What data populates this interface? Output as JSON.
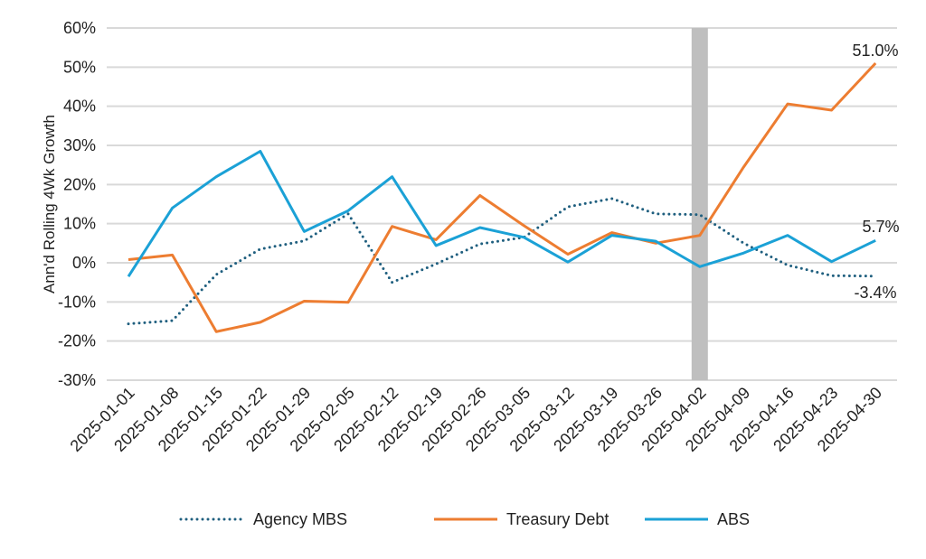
{
  "chart_data": {
    "type": "line",
    "title": "",
    "xlabel": "",
    "ylabel": "Ann'd Rolling 4Wk Growth",
    "ylim": [
      -30,
      60
    ],
    "yticks": [
      60,
      50,
      40,
      30,
      20,
      10,
      0,
      -10,
      -20,
      -30
    ],
    "ytick_labels": [
      "60%",
      "50%",
      "40%",
      "30%",
      "20%",
      "10%",
      "0%",
      "-10%",
      "-20%",
      "-30%"
    ],
    "grid": true,
    "legend_position": "bottom",
    "categories": [
      "2025-01-01",
      "2025-01-08",
      "2025-01-15",
      "2025-01-22",
      "2025-01-29",
      "2025-02-05",
      "2025-02-12",
      "2025-02-19",
      "2025-02-26",
      "2025-03-05",
      "2025-03-12",
      "2025-03-19",
      "2025-03-26",
      "2025-04-02",
      "2025-04-09",
      "2025-04-16",
      "2025-04-23",
      "2025-04-30"
    ],
    "highlight_category": "2025-04-02",
    "highlight_color": "#bfbfbf",
    "series": [
      {
        "name": "Agency MBS",
        "color": "#1f5f7f",
        "style": "dotted",
        "values": [
          -15.6,
          -14.8,
          -3,
          3.5,
          5.6,
          12.5,
          -5,
          -0.3,
          4.8,
          6.5,
          14.3,
          16.4,
          12.5,
          12.3,
          5,
          -0.6,
          -3.3,
          -3.4
        ],
        "end_label": "-3.4%"
      },
      {
        "name": "Treasury Debt",
        "color": "#ed7d31",
        "style": "solid",
        "values": [
          0.8,
          2,
          -17.6,
          -15.2,
          -9.8,
          -10.1,
          9.3,
          5.9,
          17.2,
          9.5,
          2.2,
          7.7,
          5,
          7,
          24.5,
          40.6,
          39,
          51.0
        ],
        "end_label": "51.0%"
      },
      {
        "name": "ABS",
        "color": "#1ba1d6",
        "style": "solid",
        "values": [
          -3.5,
          14,
          22,
          28.5,
          8,
          13.3,
          22,
          4.4,
          9,
          6.5,
          0.2,
          7,
          5.5,
          -1,
          2.5,
          7,
          0.3,
          5.7
        ],
        "end_label": "5.7%"
      }
    ]
  }
}
